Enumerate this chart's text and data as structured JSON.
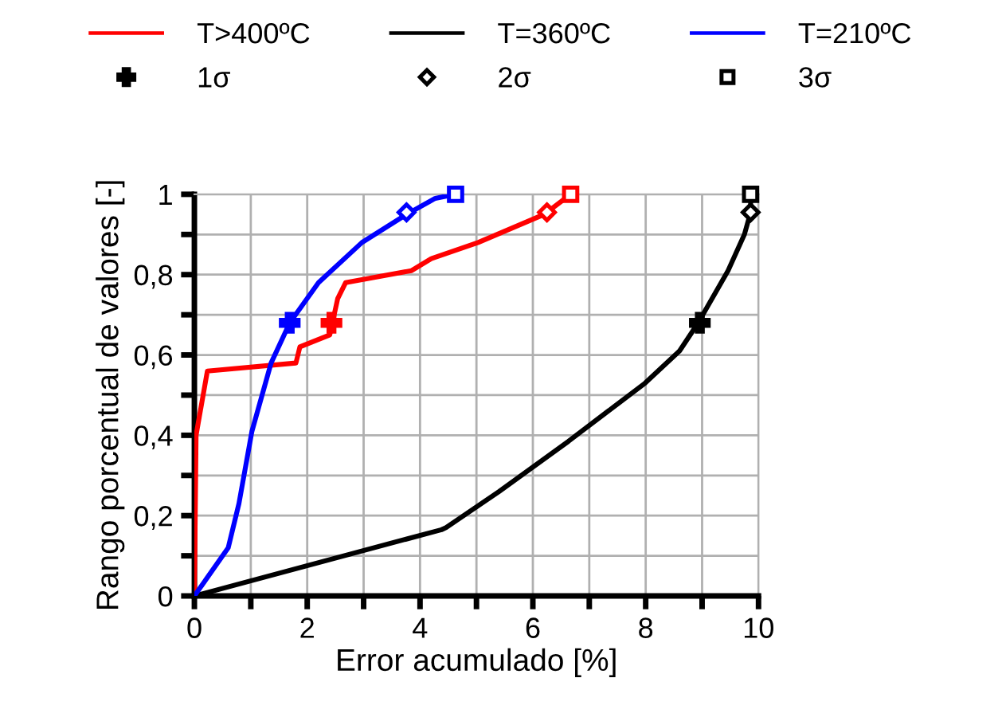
{
  "chart_data": {
    "type": "line",
    "xlabel": "Error acumulado [%]",
    "ylabel": "Rango porcentual de valores [-]",
    "xlim": [
      0,
      10
    ],
    "ylim": [
      0,
      1
    ],
    "xticks": [
      0,
      {
        "value": 1,
        "label": null
      },
      2,
      {
        "value": 3,
        "label": null
      },
      4,
      {
        "value": 5,
        "label": null
      },
      6,
      {
        "value": 7,
        "label": null
      },
      8,
      {
        "value": 9,
        "label": null
      },
      10
    ],
    "yticks": [
      0,
      {
        "value": 0.1,
        "label": null
      },
      {
        "value": 0.2,
        "label": "0,2"
      },
      {
        "value": 0.3,
        "label": null
      },
      {
        "value": 0.4,
        "label": "0,4"
      },
      {
        "value": 0.5,
        "label": null
      },
      {
        "value": 0.6,
        "label": "0,6"
      },
      {
        "value": 0.7,
        "label": null
      },
      {
        "value": 0.8,
        "label": "0,8"
      },
      {
        "value": 0.9,
        "label": null
      },
      1
    ],
    "grid": true,
    "legend": "top",
    "series": [
      {
        "name": "T>400ºC",
        "color": "#ff0000",
        "x": [
          0,
          0.03,
          0.23,
          1.8,
          1.87,
          2.4,
          2.54,
          2.68,
          3.85,
          4.2,
          5.03,
          6.2,
          6.67
        ],
        "values": [
          0,
          0.4,
          0.56,
          0.58,
          0.62,
          0.65,
          0.74,
          0.78,
          0.81,
          0.84,
          0.88,
          0.95,
          1.0
        ]
      },
      {
        "name": "1σ",
        "type": "scatter",
        "marker": "cross",
        "color": "#000000",
        "colors": [
          "#ff0000",
          "#000000",
          "#0000ff"
        ],
        "x": [
          2.43,
          8.96,
          1.69
        ],
        "values": [
          0.68,
          0.68,
          0.68
        ]
      },
      {
        "name": "T=360ºC",
        "color": "#000000",
        "x": [
          0,
          4.38,
          4.46,
          5.4,
          6.63,
          7.99,
          8.6,
          8.93,
          9.46,
          9.75,
          9.86,
          9.86
        ],
        "values": [
          0,
          0.165,
          0.17,
          0.26,
          0.385,
          0.53,
          0.61,
          0.68,
          0.81,
          0.9,
          0.955,
          1.0
        ]
      },
      {
        "name": "2σ",
        "type": "scatter",
        "marker": "diamond",
        "color": "#000000",
        "colors": [
          "#ff0000",
          "#000000",
          "#0000ff"
        ],
        "x": [
          6.25,
          9.86,
          3.76
        ],
        "values": [
          0.955,
          0.955,
          0.955
        ]
      },
      {
        "name": "T=210ºC",
        "color": "#0000ff",
        "x": [
          0,
          0.6,
          0.79,
          1.02,
          1.36,
          1.69,
          2.2,
          2.97,
          3.76,
          4.27,
          4.63
        ],
        "values": [
          0,
          0.12,
          0.23,
          0.41,
          0.58,
          0.68,
          0.78,
          0.88,
          0.95,
          0.99,
          1.0
        ]
      },
      {
        "name": "3σ",
        "type": "scatter",
        "marker": "square",
        "color": "#000000",
        "colors": [
          "#ff0000",
          "#000000",
          "#0000ff"
        ],
        "x": [
          6.67,
          9.86,
          4.63
        ],
        "values": [
          1.0,
          1.0,
          1.0
        ]
      }
    ]
  }
}
